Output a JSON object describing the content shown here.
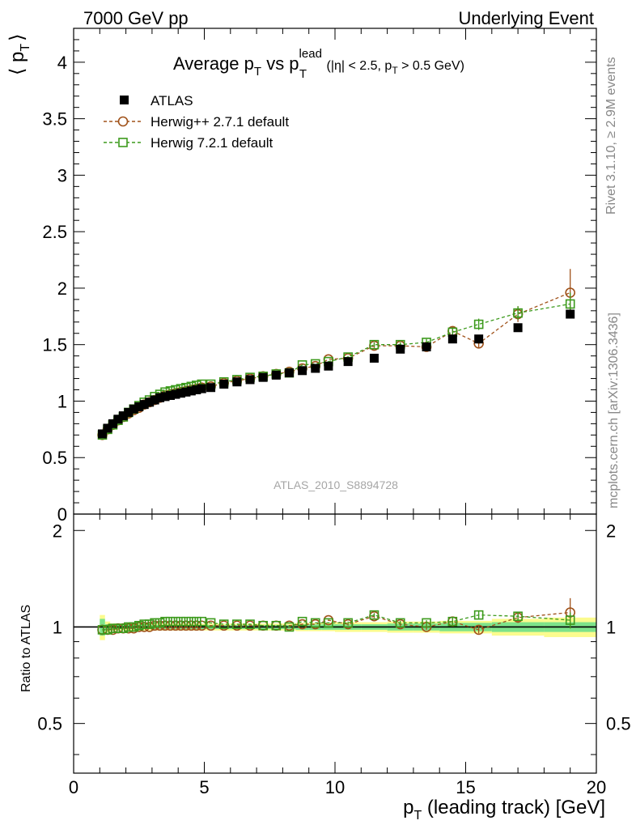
{
  "header": {
    "left": "7000 GeV pp",
    "right": "Underlying Event"
  },
  "side_labels": {
    "rivet": "Rivet 3.1.10, ≥ 2.9M events",
    "mcplots": "mcplots.cern.ch [arXiv:1306.3436]"
  },
  "chart_data": [
    {
      "type": "scatter",
      "panel": "main",
      "title": {
        "prefix": "Average p",
        "sub1": "T",
        "mid": " vs p",
        "sup2": "lead",
        "sub2": "T",
        "cut_open": " (|η| < 2.5, p",
        "cut_sub": "T",
        "cut_close": " > 0.5 GeV)"
      },
      "ylabel": {
        "left": "⟨ p",
        "sub": "T",
        "right": "⟩"
      },
      "xlim": [
        0,
        20
      ],
      "ylim": [
        0,
        4.3
      ],
      "y_ticks": [
        "0.5",
        "1",
        "1.5",
        "2",
        "2.5",
        "3",
        "3.5",
        "4"
      ],
      "y_tick_values": [
        0.5,
        1,
        1.5,
        2,
        2.5,
        3,
        3.5,
        4
      ],
      "y_bottom_label": "0",
      "watermark": "ATLAS_2010_S8894728",
      "legend_position": "top-left",
      "series": [
        {
          "name": "ATLAS",
          "color": "#000000",
          "marker": "filled-square",
          "x": [
            1.1,
            1.3,
            1.5,
            1.7,
            1.9,
            2.1,
            2.3,
            2.5,
            2.7,
            2.9,
            3.1,
            3.3,
            3.5,
            3.7,
            3.9,
            4.1,
            4.3,
            4.5,
            4.7,
            4.9,
            5.25,
            5.75,
            6.25,
            6.75,
            7.25,
            7.75,
            8.25,
            8.75,
            9.25,
            9.75,
            10.5,
            11.5,
            12.5,
            13.5,
            14.5,
            15.5,
            17.0,
            19.0
          ],
          "y": [
            0.71,
            0.76,
            0.8,
            0.84,
            0.87,
            0.9,
            0.93,
            0.95,
            0.97,
            0.99,
            1.01,
            1.03,
            1.04,
            1.05,
            1.06,
            1.07,
            1.08,
            1.09,
            1.1,
            1.11,
            1.12,
            1.15,
            1.17,
            1.19,
            1.21,
            1.23,
            1.25,
            1.27,
            1.29,
            1.31,
            1.35,
            1.38,
            1.46,
            1.48,
            1.55,
            1.55,
            1.65,
            1.77
          ]
        },
        {
          "name": "Herwig++ 2.7.1 default",
          "color": "#a0521a",
          "marker": "open-circle",
          "x": [
            1.1,
            1.3,
            1.5,
            1.7,
            1.9,
            2.1,
            2.3,
            2.5,
            2.7,
            2.9,
            3.1,
            3.3,
            3.5,
            3.7,
            3.9,
            4.1,
            4.3,
            4.5,
            4.7,
            4.9,
            5.25,
            5.75,
            6.25,
            6.75,
            7.25,
            7.75,
            8.25,
            8.75,
            9.25,
            9.75,
            10.5,
            11.5,
            12.5,
            13.5,
            14.5,
            15.5,
            17.0,
            19.0
          ],
          "y": [
            0.7,
            0.75,
            0.79,
            0.83,
            0.86,
            0.89,
            0.92,
            0.94,
            0.97,
            0.99,
            1.01,
            1.03,
            1.05,
            1.06,
            1.07,
            1.08,
            1.09,
            1.1,
            1.11,
            1.12,
            1.13,
            1.16,
            1.18,
            1.2,
            1.22,
            1.24,
            1.26,
            1.29,
            1.31,
            1.37,
            1.38,
            1.49,
            1.49,
            1.48,
            1.62,
            1.51,
            1.77,
            1.96
          ],
          "err": [
            0,
            0,
            0,
            0,
            0,
            0,
            0,
            0,
            0,
            0,
            0,
            0,
            0,
            0,
            0,
            0,
            0,
            0,
            0,
            0,
            0,
            0,
            0,
            0,
            0,
            0,
            0,
            0,
            0,
            0,
            0.01,
            0.02,
            0.02,
            0.03,
            0.04,
            0.04,
            0.07,
            0.21
          ]
        },
        {
          "name": "Herwig 7.2.1 default",
          "color": "#3c9a1c",
          "marker": "open-square",
          "x": [
            1.1,
            1.3,
            1.5,
            1.7,
            1.9,
            2.1,
            2.3,
            2.5,
            2.7,
            2.9,
            3.1,
            3.3,
            3.5,
            3.7,
            3.9,
            4.1,
            4.3,
            4.5,
            4.7,
            4.9,
            5.25,
            5.75,
            6.25,
            6.75,
            7.25,
            7.75,
            8.25,
            8.75,
            9.25,
            9.75,
            10.5,
            11.5,
            12.5,
            13.5,
            14.5,
            15.5,
            17.0,
            19.0
          ],
          "y": [
            0.7,
            0.75,
            0.79,
            0.83,
            0.86,
            0.9,
            0.93,
            0.96,
            0.99,
            1.01,
            1.04,
            1.06,
            1.08,
            1.09,
            1.1,
            1.11,
            1.12,
            1.13,
            1.14,
            1.15,
            1.15,
            1.17,
            1.19,
            1.21,
            1.22,
            1.24,
            1.25,
            1.32,
            1.33,
            1.35,
            1.39,
            1.5,
            1.5,
            1.52,
            1.61,
            1.68,
            1.78,
            1.86
          ],
          "err": [
            0,
            0,
            0,
            0,
            0,
            0,
            0,
            0,
            0,
            0,
            0,
            0,
            0,
            0,
            0,
            0,
            0,
            0,
            0,
            0,
            0,
            0,
            0,
            0,
            0,
            0,
            0,
            0,
            0,
            0,
            0.01,
            0.02,
            0.02,
            0.03,
            0.04,
            0.05,
            0.06,
            0.1
          ]
        }
      ]
    },
    {
      "type": "scatter",
      "panel": "ratio",
      "ylabel": "Ratio to ATLAS",
      "xlabel": {
        "left": "p",
        "sub": "T",
        "right": " (leading track) [GeV]"
      },
      "xlim": [
        0,
        20
      ],
      "ylim": [
        0.35,
        2.25
      ],
      "log_y": true,
      "x_ticks": [
        "0",
        "5",
        "10",
        "15",
        "20"
      ],
      "x_tick_values": [
        0,
        5,
        10,
        15,
        20
      ],
      "y_ticks": [
        "0.5",
        "1",
        "2"
      ],
      "y_tick_values": [
        0.5,
        1,
        2
      ],
      "reference_line": 1,
      "bands": {
        "edges": [
          1.0,
          1.2,
          1.4,
          1.6,
          1.8,
          2.0,
          2.2,
          2.4,
          2.6,
          2.8,
          3.0,
          3.2,
          3.4,
          3.6,
          3.8,
          4.0,
          4.2,
          4.4,
          4.6,
          4.8,
          5.0,
          5.5,
          6.0,
          6.5,
          7.0,
          7.5,
          8.0,
          8.5,
          9.0,
          9.5,
          10.0,
          11.0,
          12.0,
          13.0,
          14.0,
          15.0,
          16.0,
          18.0,
          20.0
        ],
        "stat_color": "#7de38a",
        "stat": [
          0.06,
          0.02,
          0.015,
          0.015,
          0.015,
          0.015,
          0.015,
          0.015,
          0.015,
          0.015,
          0.015,
          0.015,
          0.015,
          0.015,
          0.015,
          0.015,
          0.015,
          0.015,
          0.015,
          0.015,
          0.015,
          0.015,
          0.015,
          0.015,
          0.015,
          0.015,
          0.015,
          0.02,
          0.02,
          0.02,
          0.02,
          0.02,
          0.025,
          0.025,
          0.03,
          0.03,
          0.035,
          0.035
        ],
        "total_color": "#fbfb8e",
        "total": [
          0.09,
          0.04,
          0.025,
          0.025,
          0.025,
          0.025,
          0.025,
          0.025,
          0.025,
          0.025,
          0.025,
          0.025,
          0.025,
          0.025,
          0.025,
          0.025,
          0.025,
          0.025,
          0.025,
          0.025,
          0.025,
          0.025,
          0.025,
          0.025,
          0.025,
          0.025,
          0.025,
          0.03,
          0.03,
          0.03,
          0.035,
          0.035,
          0.04,
          0.04,
          0.045,
          0.045,
          0.06,
          0.07
        ]
      },
      "series": [
        {
          "name": "Herwig++ 2.7.1 default",
          "color": "#a0521a",
          "marker": "open-circle",
          "x": [
            1.1,
            1.3,
            1.5,
            1.7,
            1.9,
            2.1,
            2.3,
            2.5,
            2.7,
            2.9,
            3.1,
            3.3,
            3.5,
            3.7,
            3.9,
            4.1,
            4.3,
            4.5,
            4.7,
            4.9,
            5.25,
            5.75,
            6.25,
            6.75,
            7.25,
            7.75,
            8.25,
            8.75,
            9.25,
            9.75,
            10.5,
            11.5,
            12.5,
            13.5,
            14.5,
            15.5,
            17.0,
            19.0
          ],
          "y": [
            0.98,
            0.98,
            0.98,
            0.99,
            0.99,
            0.99,
            0.99,
            1.0,
            1.0,
            1.0,
            1.01,
            1.01,
            1.01,
            1.01,
            1.01,
            1.01,
            1.01,
            1.01,
            1.01,
            1.01,
            1.01,
            1.01,
            1.01,
            1.01,
            1.01,
            1.01,
            1.01,
            1.02,
            1.02,
            1.05,
            1.02,
            1.08,
            1.02,
            1.0,
            1.04,
            0.98,
            1.07,
            1.11
          ],
          "err": [
            0,
            0,
            0,
            0,
            0,
            0,
            0,
            0,
            0,
            0,
            0,
            0,
            0,
            0,
            0,
            0,
            0,
            0,
            0,
            0,
            0,
            0,
            0,
            0,
            0,
            0,
            0,
            0,
            0,
            0,
            0.01,
            0.015,
            0.015,
            0.02,
            0.025,
            0.025,
            0.04,
            0.12
          ]
        },
        {
          "name": "Herwig 7.2.1 default",
          "color": "#3c9a1c",
          "marker": "open-square",
          "x": [
            1.1,
            1.3,
            1.5,
            1.7,
            1.9,
            2.1,
            2.3,
            2.5,
            2.7,
            2.9,
            3.1,
            3.3,
            3.5,
            3.7,
            3.9,
            4.1,
            4.3,
            4.5,
            4.7,
            4.9,
            5.25,
            5.75,
            6.25,
            6.75,
            7.25,
            7.75,
            8.25,
            8.75,
            9.25,
            9.75,
            10.5,
            11.5,
            12.5,
            13.5,
            14.5,
            15.5,
            17.0,
            19.0
          ],
          "y": [
            0.98,
            0.98,
            0.99,
            0.99,
            0.99,
            1.0,
            1.0,
            1.01,
            1.02,
            1.02,
            1.03,
            1.03,
            1.04,
            1.04,
            1.04,
            1.04,
            1.04,
            1.04,
            1.04,
            1.04,
            1.03,
            1.02,
            1.02,
            1.02,
            1.01,
            1.01,
            1.0,
            1.04,
            1.03,
            1.03,
            1.03,
            1.09,
            1.03,
            1.03,
            1.04,
            1.09,
            1.08,
            1.05
          ],
          "err": [
            0,
            0,
            0,
            0,
            0,
            0,
            0,
            0,
            0,
            0,
            0,
            0,
            0,
            0,
            0,
            0,
            0,
            0,
            0,
            0,
            0,
            0,
            0,
            0,
            0,
            0,
            0,
            0,
            0,
            0,
            0.01,
            0.015,
            0.015,
            0.02,
            0.025,
            0.03,
            0.035,
            0.06
          ]
        }
      ]
    }
  ]
}
